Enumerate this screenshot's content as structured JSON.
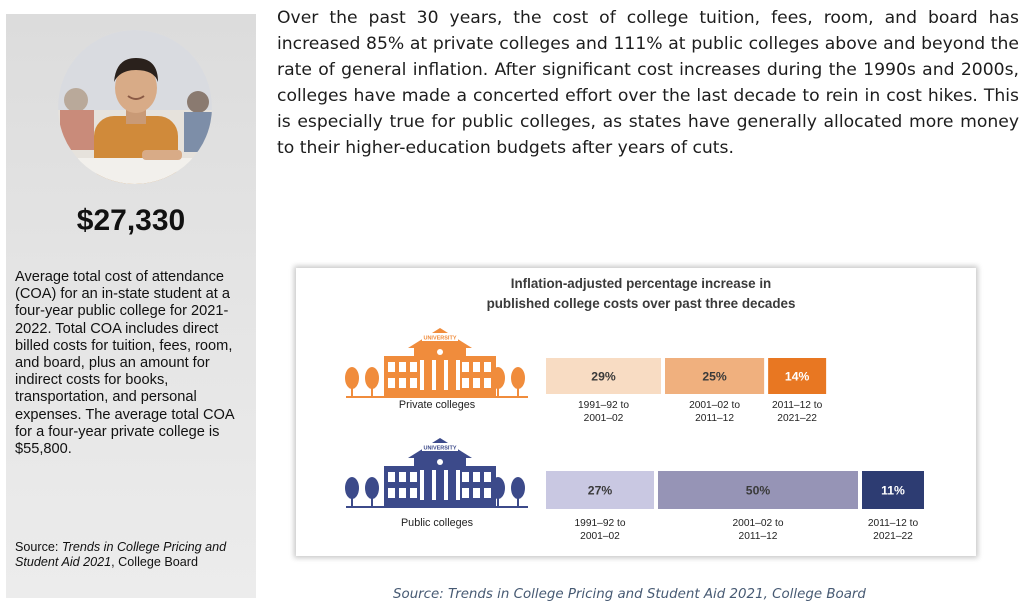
{
  "intro_paragraph": "Over the past 30 years, the cost of college tuition, fees, room, and board has increased 85% at private colleges and 111% at public colleges above and beyond the rate of general inflation. After significant cost increases during the 1990s and 2000s, colleges have made a concerted effort over the last decade to rein in cost hikes. This is especially true for public colleges, as states have generally allocated more money to their higher-education budgets after years of cuts.",
  "sidebar": {
    "price": "$27,330",
    "description": "Average total cost of attendance (COA) for an in-state student at a four-year public college for 2021-2022. Total COA includes direct billed costs for tuition, fees, room, and board, plus an amount for indirect costs for books, transportation, and personal expenses. The average total COA for a four-year private college is $55,800.",
    "source_prefix": "Source: ",
    "source_title": "Trends in College Pricing and Student Aid 2021",
    "source_suffix": ", College Board"
  },
  "building_sign": "UNIVERSITY",
  "bottom_source": "Source: Trends in College Pricing and Student Aid 2021, College Board",
  "colors": {
    "private": [
      "#f8dcc3",
      "#f0b07e",
      "#e87722"
    ],
    "public": [
      "#c9c8e2",
      "#9694b6",
      "#2d3c72"
    ],
    "private_building": "#f08c3c",
    "public_building": "#3c4a8a"
  },
  "chart_data": {
    "type": "bar",
    "title": [
      "Inflation-adjusted percentage increase in",
      "published college costs over past three decades"
    ],
    "series": [
      {
        "name": "Private colleges",
        "values": [
          29,
          25,
          14
        ],
        "labels": [
          "29%",
          "25%",
          "14%"
        ],
        "periods": [
          [
            "1991–92 to",
            "2001–02"
          ],
          [
            "2001–02 to",
            "2011–12"
          ],
          [
            "2011–12 to",
            "2021–22"
          ]
        ]
      },
      {
        "name": "Public colleges",
        "values": [
          27,
          50,
          11
        ],
        "labels": [
          "27%",
          "50%",
          "11%"
        ],
        "periods": [
          [
            "1991–92 to",
            "2001–02"
          ],
          [
            "2001–02 to",
            "2011–12"
          ],
          [
            "2011–12 to",
            "2021–22"
          ]
        ]
      }
    ]
  }
}
